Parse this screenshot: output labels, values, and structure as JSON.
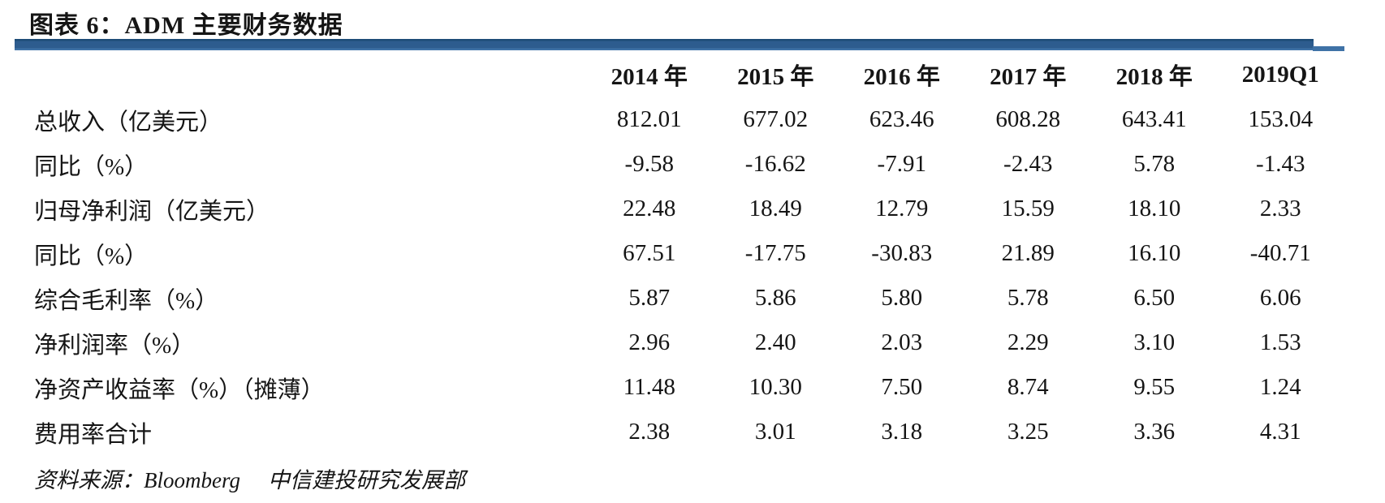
{
  "title": "图表 6：ADM 主要财务数据",
  "table": {
    "columns": [
      "2014 年",
      "2015 年",
      "2016 年",
      "2017 年",
      "2018 年",
      "2019Q1"
    ],
    "rows": [
      {
        "label": "总收入（亿美元）",
        "values": [
          "812.01",
          "677.02",
          "623.46",
          "608.28",
          "643.41",
          "153.04"
        ]
      },
      {
        "label": "同比（%）",
        "values": [
          "-9.58",
          "-16.62",
          "-7.91",
          "-2.43",
          "5.78",
          "-1.43"
        ]
      },
      {
        "label": "归母净利润（亿美元）",
        "values": [
          "22.48",
          "18.49",
          "12.79",
          "15.59",
          "18.10",
          "2.33"
        ]
      },
      {
        "label": "同比（%）",
        "values": [
          "67.51",
          "-17.75",
          "-30.83",
          "21.89",
          "16.10",
          "-40.71"
        ]
      },
      {
        "label": "综合毛利率（%）",
        "values": [
          "5.87",
          "5.86",
          "5.80",
          "5.78",
          "6.50",
          "6.06"
        ]
      },
      {
        "label": "净利润率（%）",
        "values": [
          "2.96",
          "2.40",
          "2.03",
          "2.29",
          "3.10",
          "1.53"
        ]
      },
      {
        "label": "净资产收益率（%）（摊薄）",
        "values": [
          "11.48",
          "10.30",
          "7.50",
          "8.74",
          "9.55",
          "1.24"
        ]
      },
      {
        "label": "费用率合计",
        "values": [
          "2.38",
          "3.01",
          "3.18",
          "3.25",
          "3.36",
          "4.31"
        ]
      }
    ]
  },
  "footer": {
    "source_label": "资料来源：",
    "source_name": "Bloomberg",
    "source_org": "中信建投研究发展部"
  },
  "colors": {
    "accent_bar": "#2d5c8e",
    "accent_bar_dark": "#1d4c77",
    "accent_bar_light": "#3f72a6",
    "text": "#151515"
  }
}
